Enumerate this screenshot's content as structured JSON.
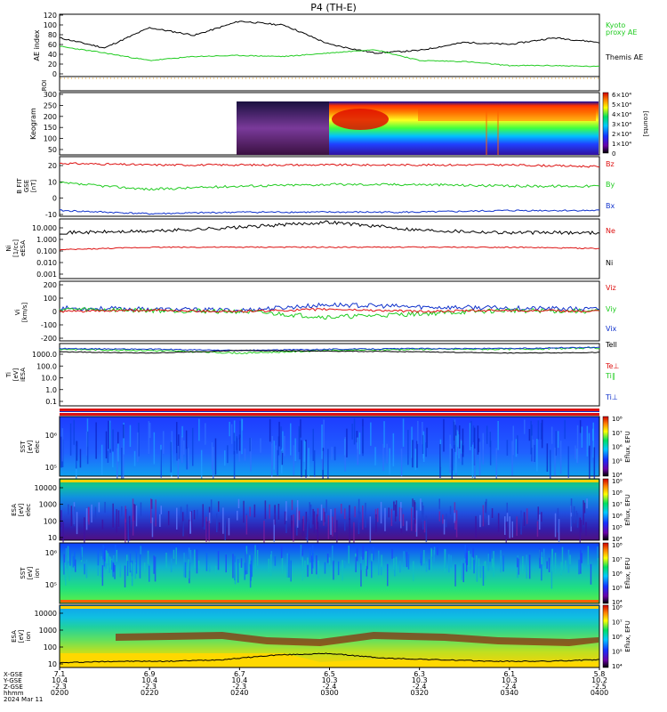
{
  "title": "P4 (TH-E)",
  "colors": {
    "green": "#22cc22",
    "black": "#000000",
    "red": "#dd1111",
    "blue": "#1133cc",
    "orange": "#e8a020"
  },
  "panels": {
    "ae": {
      "ylabel": "AE index",
      "ticks": [
        "120",
        "100",
        "80",
        "60",
        "40",
        "20",
        "0"
      ],
      "legend": [
        "Kyoto",
        "proxy AE",
        "Themis AE"
      ]
    },
    "roi": {
      "ylabel": "ROI"
    },
    "keogram": {
      "ylabel": "Keogram",
      "ticks": [
        "300",
        "250",
        "200",
        "150",
        "100",
        "50"
      ],
      "cbar": [
        "6×10⁴",
        "5×10⁴",
        "4×10⁴",
        "3×10⁴",
        "2×10⁴",
        "1×10⁴",
        "0"
      ],
      "cbar_label": "[counts]"
    },
    "bfield": {
      "ylabel1": "B FIT",
      "ylabel2": "GSE",
      "ylabel3": "[nT]",
      "ticks": [
        "20",
        "10",
        "0",
        "-10"
      ],
      "legend": [
        "Bz",
        "By",
        "Bx"
      ]
    },
    "density": {
      "ylabel1": "Ni",
      "ylabel2": "[1/cc]",
      "ylabel3": "eESA",
      "ticks": [
        "10.000",
        "1.000",
        "0.100",
        "0.010",
        "0.001"
      ],
      "legend": [
        "Ne",
        "Ni"
      ]
    },
    "velocity": {
      "ylabel1": "Vi",
      "ylabel2": "[km/s]",
      "ticks": [
        "200",
        "100",
        "0",
        "-100",
        "-200"
      ],
      "legend": [
        "Viz",
        "Viy",
        "Vix"
      ]
    },
    "temp": {
      "ylabel1": "Ti",
      "ylabel2": "[eV]",
      "ylabel3": "iESA",
      "ticks": [
        "1000.0",
        "100.0",
        "10.0",
        "1.0",
        "0.1"
      ],
      "legend": [
        "Tell",
        "Te⊥",
        "Ti∥",
        "Ti⊥"
      ]
    },
    "sst_e": {
      "ylabel1": "SST",
      "ylabel2": "[eV]",
      "ylabel3": "elec",
      "ticks": [
        "10⁶",
        "10⁵"
      ],
      "cbar": [
        "10⁸",
        "10⁷",
        "10⁶",
        "10⁵",
        "10⁴"
      ],
      "cbar_label": "Eflux, EFU"
    },
    "esa_e": {
      "ylabel1": "ESA",
      "ylabel2": "[eV]",
      "ylabel3": "elec",
      "ticks": [
        "10000",
        "1000",
        "100",
        "10"
      ],
      "cbar": [
        "10⁹",
        "10⁸",
        "10⁷",
        "10⁶",
        "10⁵",
        "10⁴"
      ],
      "cbar_label": "Eflux, EFU"
    },
    "sst_i": {
      "ylabel1": "SST",
      "ylabel2": "[eV]",
      "ylabel3": "ion",
      "ticks": [
        "10⁶",
        "10⁵"
      ],
      "cbar": [
        "10⁸",
        "10⁷",
        "10⁶",
        "10⁵",
        "10⁴"
      ],
      "cbar_label": "Eflux, EFU"
    },
    "esa_i": {
      "ylabel1": "ESA",
      "ylabel2": "[eV]",
      "ylabel3": "ion",
      "ticks": [
        "10000",
        "1000",
        "100",
        "10"
      ],
      "cbar": [
        "10⁸",
        "10⁷",
        "10⁶",
        "10⁵",
        "10⁴"
      ],
      "cbar_label": "Eflux, EFU"
    }
  },
  "xaxis": {
    "row_labels": [
      "X-GSE",
      "Y-GSE",
      "Z-GSE",
      "hhmm",
      "2024 Mar 11"
    ],
    "ticks": [
      {
        "x": "7.1",
        "y": "10.4",
        "z": "-2.3",
        "t": "0200"
      },
      {
        "x": "6.9",
        "y": "10.4",
        "z": "-2.3",
        "t": "0220"
      },
      {
        "x": "6.7",
        "y": "10.4",
        "z": "-2.3",
        "t": "0240"
      },
      {
        "x": "6.5",
        "y": "10.3",
        "z": "-2.4",
        "t": "0300"
      },
      {
        "x": "6.3",
        "y": "10.3",
        "z": "-2.4",
        "t": "0320"
      },
      {
        "x": "6.1",
        "y": "10.3",
        "z": "-2.4",
        "t": "0340"
      },
      {
        "x": "5.8",
        "y": "10.2",
        "z": "-2.5",
        "t": "0400"
      }
    ]
  },
  "chart_data": [
    {
      "type": "line",
      "title": "P4 (TH-E)",
      "ylabel": "AE index",
      "ylim": [
        0,
        120
      ],
      "x": [
        "0200",
        "0210",
        "0220",
        "0230",
        "0240",
        "0250",
        "0300",
        "0310",
        "0320",
        "0330",
        "0340",
        "0350",
        "0400"
      ],
      "series": [
        {
          "name": "Themis AE",
          "values": [
            75,
            55,
            95,
            80,
            108,
            100,
            62,
            45,
            50,
            66,
            62,
            75,
            66
          ]
        },
        {
          "name": "Kyoto proxy AE",
          "values": [
            58,
            45,
            30,
            38,
            40,
            38,
            45,
            52,
            30,
            28,
            20,
            20,
            18
          ]
        }
      ]
    },
    {
      "type": "line",
      "ylabel": "B FIT GSE [nT]",
      "ylim": [
        -10,
        25
      ],
      "x": [
        "0200",
        "0220",
        "0240",
        "0300",
        "0320",
        "0340",
        "0400"
      ],
      "series": [
        {
          "name": "Bz",
          "values": [
            22,
            21,
            21,
            21,
            21,
            21,
            20
          ]
        },
        {
          "name": "By",
          "values": [
            10,
            6,
            8,
            9,
            9,
            8,
            8
          ]
        },
        {
          "name": "Bx",
          "values": [
            -7,
            -9,
            -8,
            -8,
            -8,
            -7,
            -7
          ]
        }
      ]
    },
    {
      "type": "line",
      "ylabel": "Vi [km/s]",
      "ylim": [
        -250,
        250
      ],
      "x": [
        "0200",
        "0220",
        "0240",
        "0300",
        "0320",
        "0340",
        "0400"
      ],
      "series": [
        {
          "name": "Viz",
          "values": [
            0,
            10,
            0,
            20,
            0,
            10,
            0
          ]
        },
        {
          "name": "Viy",
          "values": [
            20,
            10,
            0,
            -50,
            -20,
            10,
            0
          ]
        },
        {
          "name": "Vix",
          "values": [
            30,
            20,
            10,
            60,
            40,
            30,
            20
          ]
        }
      ]
    }
  ]
}
